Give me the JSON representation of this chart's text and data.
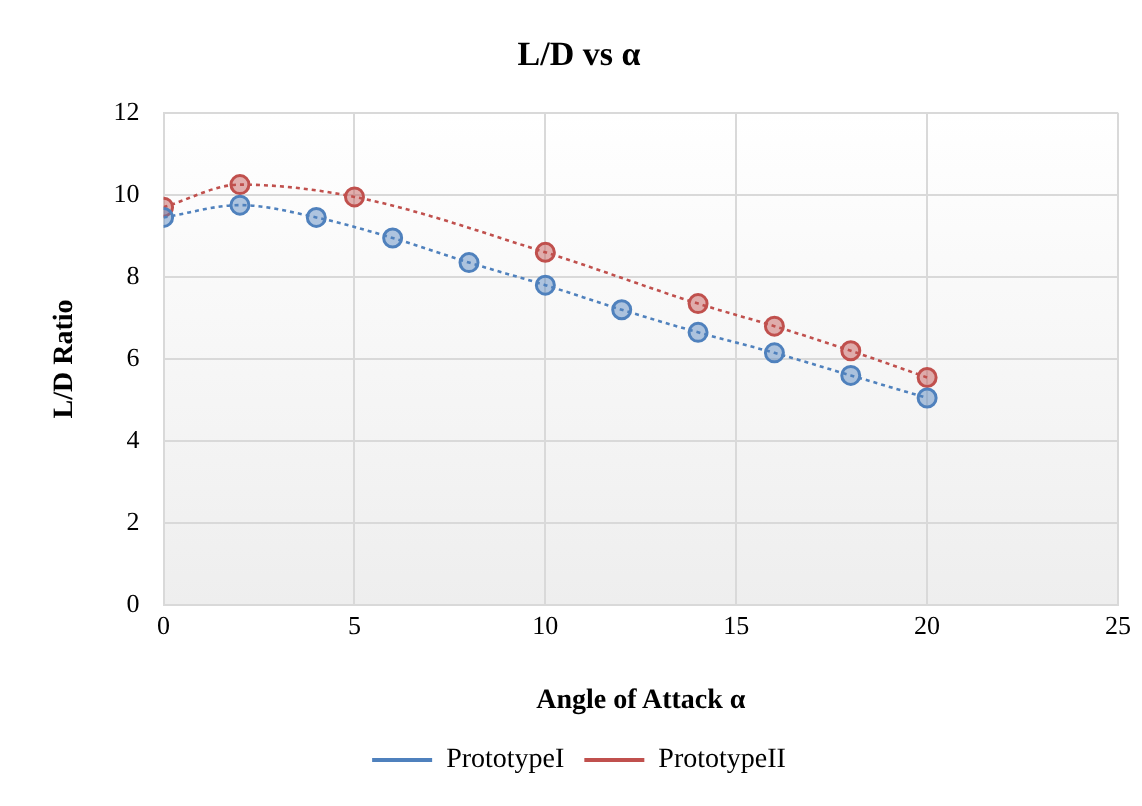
{
  "chart_data": {
    "type": "line",
    "title": "L/D vs α",
    "xlabel": "Angle of Attack α",
    "ylabel": "L/D Ratio",
    "xlim": [
      0,
      25
    ],
    "xticks": [
      0,
      5,
      10,
      15,
      20,
      25
    ],
    "ylim": [
      0,
      12
    ],
    "yticks": [
      0,
      2,
      4,
      6,
      8,
      10,
      12
    ],
    "grid": true,
    "legend": "bottom",
    "marker": "circle",
    "line_style": "dotted",
    "series": [
      {
        "name": "PrototypeI",
        "color": "#4f81bd",
        "x": [
          0,
          2,
          4,
          6,
          8,
          10,
          12,
          14,
          16,
          18,
          20
        ],
        "values": [
          9.45,
          9.75,
          9.45,
          8.95,
          8.35,
          7.8,
          7.2,
          6.65,
          6.15,
          5.6,
          5.05
        ]
      },
      {
        "name": "PrototypeII",
        "color": "#c0504d",
        "x": [
          0,
          2,
          5,
          10,
          14,
          16,
          18,
          20
        ],
        "values": [
          9.7,
          10.25,
          9.95,
          8.6,
          7.35,
          6.8,
          6.2,
          5.55
        ]
      }
    ]
  }
}
